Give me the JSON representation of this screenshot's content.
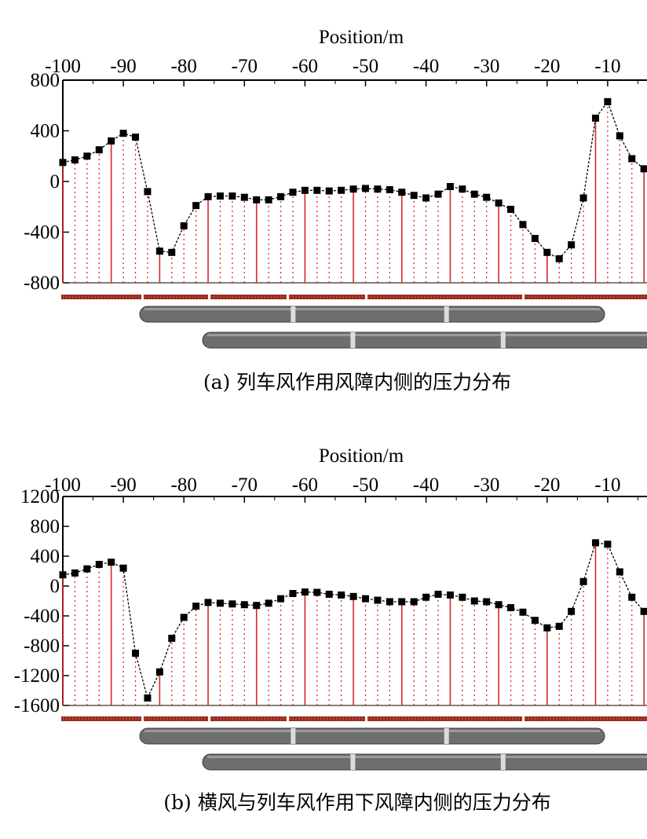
{
  "chart_data": [
    {
      "type": "line",
      "xlabel": "Position/m",
      "xticks": [
        -100,
        -90,
        -80,
        -70,
        -60,
        -50,
        -40,
        -30,
        -20,
        -10
      ],
      "yticks": [
        800,
        400,
        0,
        -400,
        -800
      ],
      "ylim": [
        -800,
        800
      ],
      "caption": "(a) 列车风作用风障内侧的压力分布",
      "line_color": "#000000",
      "stem_color": "#d62728",
      "marker": "square",
      "x": [
        -100,
        -98,
        -96,
        -94,
        -92,
        -90,
        -88,
        -86,
        -84,
        -82,
        -80,
        -78,
        -76,
        -74,
        -72,
        -70,
        -68,
        -66,
        -64,
        -62,
        -60,
        -58,
        -56,
        -54,
        -52,
        -50,
        -48,
        -46,
        -44,
        -42,
        -40,
        -38,
        -36,
        -34,
        -32,
        -30,
        -28,
        -26,
        -24,
        -22,
        -20,
        -18,
        -16,
        -14,
        -12,
        -10,
        -8,
        -6,
        -4
      ],
      "y": [
        150,
        170,
        200,
        250,
        320,
        380,
        350,
        -80,
        -550,
        -560,
        -350,
        -190,
        -120,
        -115,
        -115,
        -125,
        -145,
        -145,
        -120,
        -85,
        -70,
        -70,
        -75,
        -70,
        -60,
        -55,
        -60,
        -65,
        -85,
        -110,
        -130,
        -100,
        -40,
        -60,
        -100,
        -125,
        -170,
        -220,
        -340,
        -450,
        -560,
        -610,
        -500,
        -130,
        500,
        630,
        360,
        180,
        100
      ]
    },
    {
      "type": "line",
      "xlabel": "Position/m",
      "xticks": [
        -100,
        -90,
        -80,
        -70,
        -60,
        -50,
        -40,
        -30,
        -20,
        -10
      ],
      "yticks": [
        1200,
        800,
        400,
        0,
        -400,
        -800,
        -1200,
        -1600
      ],
      "ylim": [
        -1600,
        1200
      ],
      "caption": "(b) 横风与列车风作用下风障内侧的压力分布",
      "line_color": "#000000",
      "stem_color": "#d62728",
      "marker": "square",
      "x": [
        -100,
        -98,
        -96,
        -94,
        -92,
        -90,
        -88,
        -86,
        -84,
        -82,
        -80,
        -78,
        -76,
        -74,
        -72,
        -70,
        -68,
        -66,
        -64,
        -62,
        -60,
        -58,
        -56,
        -54,
        -52,
        -50,
        -48,
        -46,
        -44,
        -42,
        -40,
        -38,
        -36,
        -34,
        -32,
        -30,
        -28,
        -26,
        -24,
        -22,
        -20,
        -18,
        -16,
        -14,
        -12,
        -10,
        -8,
        -6,
        -4
      ],
      "y": [
        150,
        175,
        230,
        290,
        320,
        240,
        -900,
        -1500,
        -1150,
        -700,
        -420,
        -270,
        -220,
        -230,
        -240,
        -250,
        -260,
        -230,
        -170,
        -100,
        -80,
        -85,
        -110,
        -120,
        -140,
        -170,
        -190,
        -210,
        -210,
        -210,
        -150,
        -110,
        -120,
        -150,
        -200,
        -210,
        -250,
        -290,
        -350,
        -460,
        -560,
        -540,
        -340,
        60,
        580,
        560,
        190,
        -150,
        -340
      ]
    }
  ]
}
